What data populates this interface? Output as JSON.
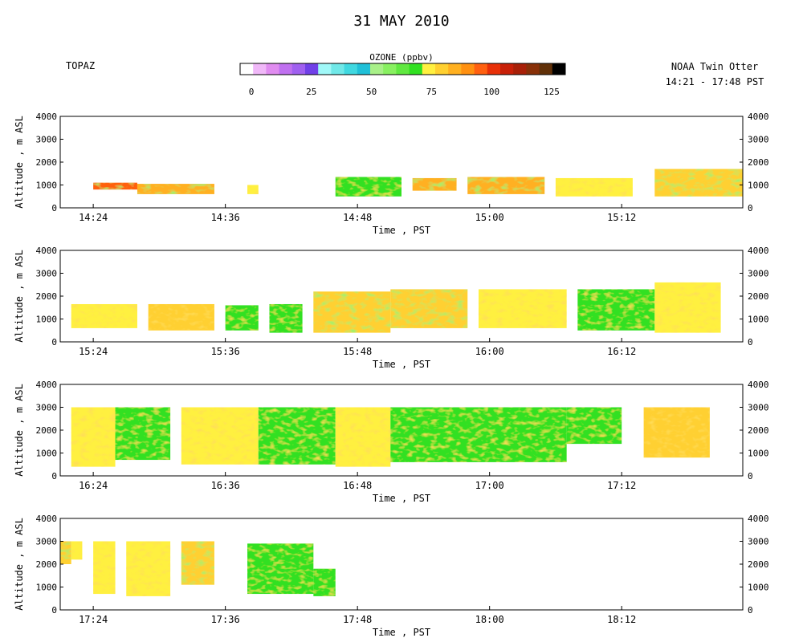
{
  "title": "31 MAY 2010",
  "site_label": "TOPAZ",
  "platform_label": "NOAA Twin Otter",
  "time_range_label": "14:21 - 17:48 PST",
  "colorbar": {
    "label": "OZONE (ppbv)",
    "min": 0,
    "max": 125,
    "ticks": [
      "0",
      "25",
      "50",
      "75",
      "100",
      "125"
    ],
    "colors": [
      "#ffffff",
      "#f0b8f8",
      "#e08cf0",
      "#c070f0",
      "#a060f0",
      "#7040e8",
      "#a0f8f8",
      "#70e8e8",
      "#40d8e0",
      "#20c0d8",
      "#a8f088",
      "#88f060",
      "#60e840",
      "#30e020",
      "#fff040",
      "#ffd030",
      "#ffb020",
      "#ff9010",
      "#ff6010",
      "#e83008",
      "#c82008",
      "#a82008",
      "#883008",
      "#603008",
      "#000000"
    ]
  },
  "chart_data": [
    {
      "type": "heatmap",
      "panel": 1,
      "variable": "Ozone (ppbv)",
      "xlabel": "Time , PST",
      "ylabel": "Altitude , m ASL",
      "x_ticks": [
        "14:24",
        "14:36",
        "14:48",
        "15:00",
        "15:12"
      ],
      "xlim": [
        "14:21",
        "15:23"
      ],
      "ylim": [
        0,
        4000
      ],
      "y_ticks": [
        "0",
        "1000",
        "2000",
        "3000",
        "4000"
      ],
      "segments": [
        {
          "t0": "14:24",
          "t1": "14:28",
          "alt_bottom": 800,
          "alt_top": 1100,
          "ozone": 95
        },
        {
          "t0": "14:28",
          "t1": "14:35",
          "alt_bottom": 600,
          "alt_top": 1050,
          "ozone": 82
        },
        {
          "t0": "14:38",
          "t1": "14:39",
          "alt_bottom": 600,
          "alt_top": 1000,
          "ozone": 75
        },
        {
          "t0": "14:46",
          "t1": "14:52",
          "alt_bottom": 500,
          "alt_top": 1350,
          "ozone": 70
        },
        {
          "t0": "14:53",
          "t1": "14:57",
          "alt_bottom": 750,
          "alt_top": 1300,
          "ozone": 82
        },
        {
          "t0": "14:58",
          "t1": "15:05",
          "alt_bottom": 600,
          "alt_top": 1350,
          "ozone": 85
        },
        {
          "t0": "15:06",
          "t1": "15:13",
          "alt_bottom": 500,
          "alt_top": 1300,
          "ozone": 72
        },
        {
          "t0": "15:15",
          "t1": "15:23",
          "alt_bottom": 500,
          "alt_top": 1700,
          "ozone": 78
        }
      ]
    },
    {
      "type": "heatmap",
      "panel": 2,
      "variable": "Ozone (ppbv)",
      "xlabel": "Time , PST",
      "ylabel": "Altitude , m ASL",
      "x_ticks": [
        "15:24",
        "15:36",
        "15:48",
        "16:00",
        "16:12"
      ],
      "xlim": [
        "15:21",
        "16:23"
      ],
      "ylim": [
        0,
        4000
      ],
      "y_ticks": [
        "0",
        "1000",
        "2000",
        "3000",
        "4000"
      ],
      "segments": [
        {
          "t0": "15:22",
          "t1": "15:28",
          "alt_bottom": 600,
          "alt_top": 1650,
          "ozone": 75
        },
        {
          "t0": "15:29",
          "t1": "15:35",
          "alt_bottom": 500,
          "alt_top": 1650,
          "ozone": 76
        },
        {
          "t0": "15:36",
          "t1": "15:39",
          "alt_bottom": 500,
          "alt_top": 1600,
          "ozone": 68
        },
        {
          "t0": "15:40",
          "t1": "15:43",
          "alt_bottom": 400,
          "alt_top": 1650,
          "ozone": 67
        },
        {
          "t0": "15:44",
          "t1": "15:51",
          "alt_bottom": 400,
          "alt_top": 2200,
          "ozone": 80
        },
        {
          "t0": "15:51",
          "t1": "15:58",
          "alt_bottom": 600,
          "alt_top": 2300,
          "ozone": 78
        },
        {
          "t0": "15:59",
          "t1": "16:07",
          "alt_bottom": 600,
          "alt_top": 2300,
          "ozone": 74
        },
        {
          "t0": "16:08",
          "t1": "16:15",
          "alt_bottom": 500,
          "alt_top": 2300,
          "ozone": 70
        },
        {
          "t0": "16:15",
          "t1": "16:21",
          "alt_bottom": 400,
          "alt_top": 2600,
          "ozone": 75
        }
      ]
    },
    {
      "type": "heatmap",
      "panel": 3,
      "variable": "Ozone (ppbv)",
      "xlabel": "Time , PST",
      "ylabel": "Altitude , m ASL",
      "x_ticks": [
        "16:24",
        "16:36",
        "16:48",
        "17:00",
        "17:12"
      ],
      "xlim": [
        "16:21",
        "17:23"
      ],
      "ylim": [
        0,
        4000
      ],
      "y_ticks": [
        "0",
        "1000",
        "2000",
        "3000",
        "4000"
      ],
      "segments": [
        {
          "t0": "16:22",
          "t1": "16:26",
          "alt_bottom": 400,
          "alt_top": 3000,
          "ozone": 72
        },
        {
          "t0": "16:26",
          "t1": "16:31",
          "alt_bottom": 700,
          "alt_top": 3000,
          "ozone": 70
        },
        {
          "t0": "16:32",
          "t1": "16:39",
          "alt_bottom": 500,
          "alt_top": 3000,
          "ozone": 72
        },
        {
          "t0": "16:39",
          "t1": "16:46",
          "alt_bottom": 500,
          "alt_top": 3000,
          "ozone": 68
        },
        {
          "t0": "16:46",
          "t1": "16:51",
          "alt_bottom": 400,
          "alt_top": 3000,
          "ozone": 72
        },
        {
          "t0": "16:51",
          "t1": "17:07",
          "alt_bottom": 600,
          "alt_top": 3000,
          "ozone": 70
        },
        {
          "t0": "17:07",
          "t1": "17:12",
          "alt_bottom": 1400,
          "alt_top": 3000,
          "ozone": 66
        },
        {
          "t0": "17:14",
          "t1": "17:20",
          "alt_bottom": 800,
          "alt_top": 3000,
          "ozone": 76
        }
      ]
    },
    {
      "type": "heatmap",
      "panel": 4,
      "variable": "Ozone (ppbv)",
      "xlabel": "Time , PST",
      "ylabel": "Altitude , m ASL",
      "x_ticks": [
        "17:24",
        "17:36",
        "17:48",
        "18:00",
        "18:12"
      ],
      "xlim": [
        "17:21",
        "18:23"
      ],
      "ylim": [
        0,
        4000
      ],
      "y_ticks": [
        "0",
        "1000",
        "2000",
        "3000",
        "4000"
      ],
      "segments": [
        {
          "t0": "17:21",
          "t1": "17:22",
          "alt_bottom": 2000,
          "alt_top": 3000,
          "ozone": 80
        },
        {
          "t0": "17:22",
          "t1": "17:23",
          "alt_bottom": 2200,
          "alt_top": 3000,
          "ozone": 75
        },
        {
          "t0": "17:24",
          "t1": "17:26",
          "alt_bottom": 700,
          "alt_top": 3000,
          "ozone": 72
        },
        {
          "t0": "17:27",
          "t1": "17:31",
          "alt_bottom": 600,
          "alt_top": 3000,
          "ozone": 74
        },
        {
          "t0": "17:32",
          "t1": "17:35",
          "alt_bottom": 1100,
          "alt_top": 3000,
          "ozone": 78
        },
        {
          "t0": "17:38",
          "t1": "17:44",
          "alt_bottom": 700,
          "alt_top": 2900,
          "ozone": 68
        },
        {
          "t0": "17:44",
          "t1": "17:46",
          "alt_bottom": 600,
          "alt_top": 1800,
          "ozone": 66
        }
      ]
    }
  ]
}
